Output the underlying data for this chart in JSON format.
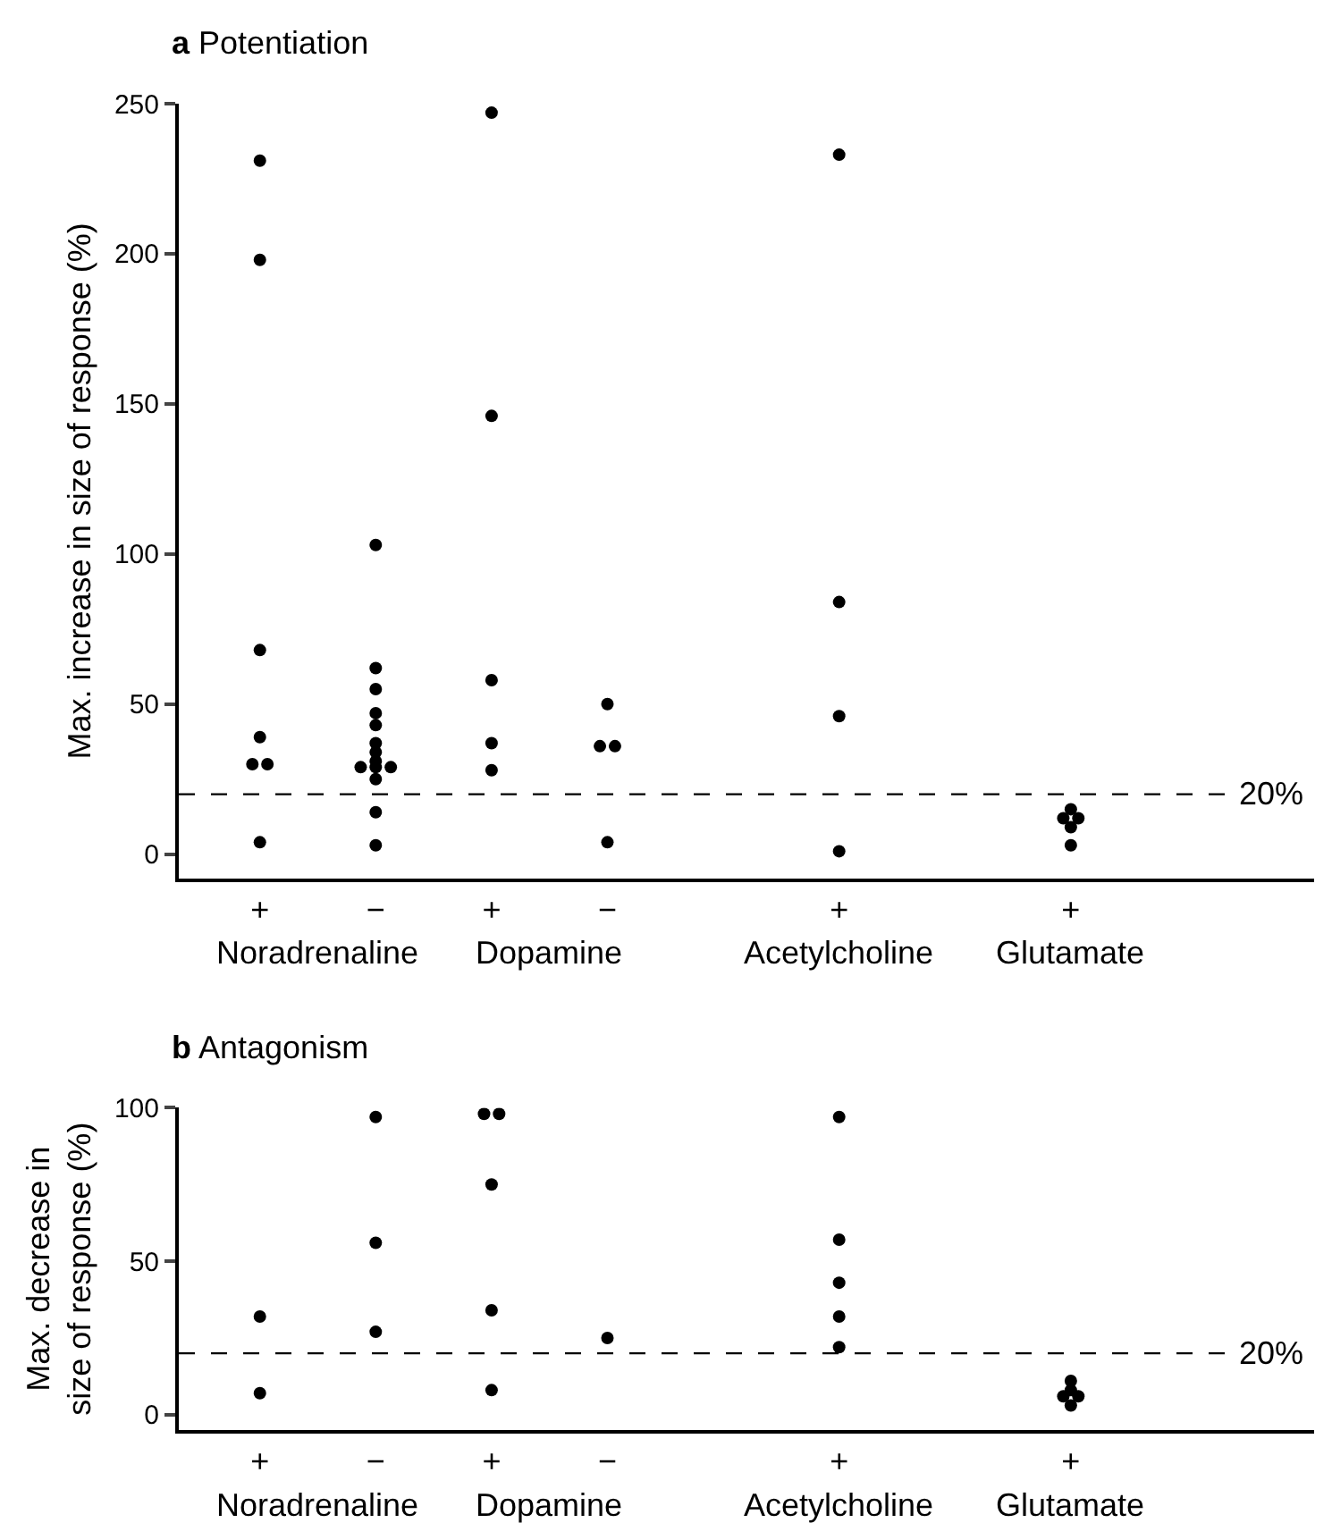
{
  "chart_data": [
    {
      "type": "scatter",
      "title": "a Potentiation",
      "ylabel": "Max. increase in size of response (%)",
      "categories": [
        "+",
        "−",
        "+",
        "−",
        null,
        "+",
        null,
        "+",
        null,
        null
      ],
      "annotations": [
        "Noradrenaline",
        "Dopamine",
        "Acetylcholine",
        "Glutamate"
      ],
      "series": [
        {
          "color": "#000000",
          "values": [
            231,
            103,
            247,
            50,
            null,
            233,
            null,
            15,
            null,
            null
          ]
        },
        {
          "color": "#000000",
          "values": [
            198,
            62,
            146,
            36,
            null,
            84,
            null,
            12,
            null,
            null
          ]
        },
        {
          "color": "#000000",
          "values": [
            68,
            55,
            58,
            36,
            null,
            46,
            null,
            12,
            null,
            null
          ]
        },
        {
          "color": "#000000",
          "values": [
            39,
            47,
            37,
            4,
            null,
            1,
            null,
            9,
            null,
            null
          ]
        },
        {
          "color": "#000000",
          "values": [
            30,
            43,
            28,
            null,
            null,
            null,
            null,
            3,
            null,
            null
          ]
        },
        {
          "color": "#000000",
          "values": [
            30,
            37,
            null,
            null,
            null,
            null,
            null,
            null,
            null,
            null
          ]
        },
        {
          "color": "#000000",
          "values": [
            4,
            34,
            null,
            null,
            null,
            null,
            null,
            null,
            null,
            null
          ]
        },
        {
          "color": "#000000",
          "values": [
            null,
            31,
            null,
            null,
            null,
            null,
            null,
            null,
            null,
            null
          ]
        },
        {
          "color": "#000000",
          "values": [
            null,
            29,
            null,
            null,
            null,
            null,
            null,
            null,
            null,
            null
          ]
        },
        {
          "color": "#000000",
          "values": [
            null,
            29,
            null,
            null,
            null,
            null,
            null,
            null,
            null,
            null
          ]
        },
        {
          "color": "#000000",
          "values": [
            null,
            29,
            null,
            null,
            null,
            null,
            null,
            null,
            null,
            null
          ]
        },
        {
          "color": "#000000",
          "values": [
            null,
            25,
            null,
            null,
            null,
            null,
            null,
            null,
            null,
            null
          ]
        },
        {
          "color": "#000000",
          "values": [
            null,
            14,
            null,
            null,
            null,
            null,
            null,
            null,
            null,
            null
          ]
        },
        {
          "color": "#000000",
          "values": [
            null,
            3,
            null,
            null,
            null,
            null,
            null,
            null,
            null,
            null
          ]
        }
      ],
      "ylim": [
        -8,
        250
      ],
      "yticks": [
        0,
        50,
        100,
        150,
        200,
        250
      ],
      "marker": "circle",
      "ref_lines": [
        {
          "axis": "y",
          "value": 20,
          "label": "20%",
          "line_style": "dashed",
          "color": "#000000"
        }
      ]
    },
    {
      "type": "scatter",
      "title": "b Antagonism",
      "ylabel": "Max. decrease in\nsize of response (%)",
      "categories": [
        "+",
        "−",
        "+",
        "−",
        null,
        "+",
        null,
        "+",
        null,
        null
      ],
      "annotations": [
        "Noradrenaline",
        "Dopamine",
        "Acetylcholine",
        "Glutamate"
      ],
      "series": [
        {
          "color": "#000000",
          "values": [
            32,
            97,
            98,
            25,
            null,
            97,
            null,
            11,
            null,
            null
          ]
        },
        {
          "color": "#000000",
          "values": [
            7,
            56,
            98,
            null,
            null,
            57,
            null,
            8,
            null,
            null
          ]
        },
        {
          "color": "#000000",
          "values": [
            null,
            27,
            75,
            null,
            null,
            43,
            null,
            6,
            null,
            null
          ]
        },
        {
          "color": "#000000",
          "values": [
            null,
            null,
            34,
            null,
            null,
            32,
            null,
            6,
            null,
            null
          ]
        },
        {
          "color": "#000000",
          "values": [
            null,
            null,
            8,
            null,
            null,
            22,
            null,
            3,
            null,
            null
          ]
        }
      ],
      "ylim": [
        -5,
        100
      ],
      "yticks": [
        0,
        50,
        100
      ],
      "marker": "circle",
      "ref_lines": [
        {
          "axis": "y",
          "value": 20,
          "label": "20%",
          "line_style": "dashed",
          "color": "#000000"
        }
      ]
    }
  ]
}
